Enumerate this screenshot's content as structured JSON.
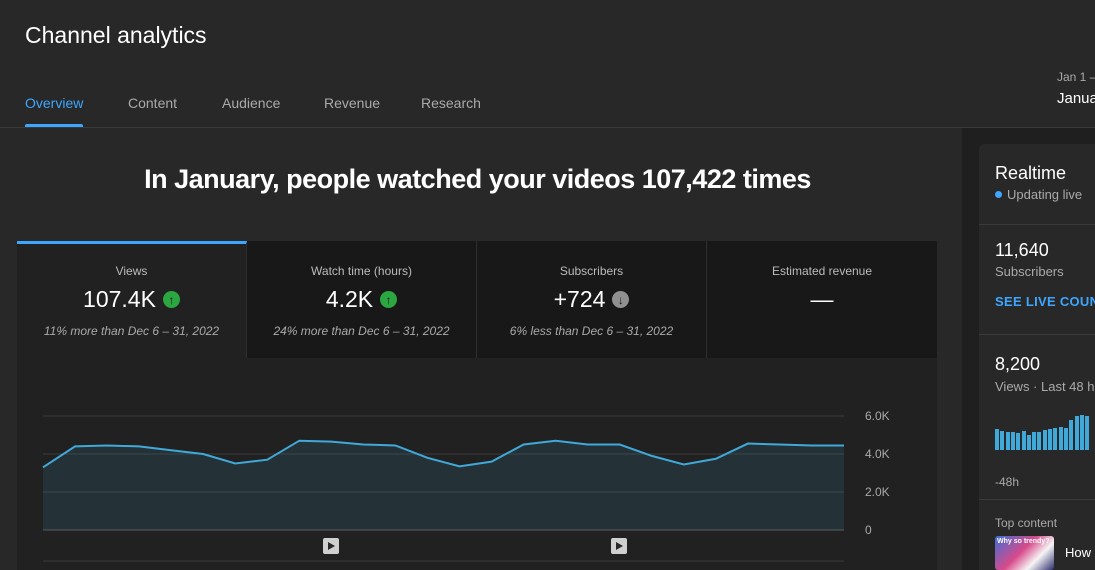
{
  "page": {
    "title": "Channel analytics"
  },
  "tabs": [
    {
      "label": "Overview",
      "active": true
    },
    {
      "label": "Content",
      "active": false
    },
    {
      "label": "Audience",
      "active": false
    },
    {
      "label": "Revenue",
      "active": false
    },
    {
      "label": "Research",
      "active": false
    }
  ],
  "date_range": {
    "short": "Jan 1 –",
    "label": "Janua"
  },
  "headline": "In January, people watched your videos 107,422 times",
  "metrics": [
    {
      "label": "Views",
      "value": "107.4K",
      "trend": "up",
      "comparison": "11% more than Dec 6 – 31, 2022"
    },
    {
      "label": "Watch time (hours)",
      "value": "4.2K",
      "trend": "up",
      "comparison": "24% more than Dec 6 – 31, 2022"
    },
    {
      "label": "Subscribers",
      "value": "+724",
      "trend": "down",
      "comparison": "6% less than Dec 6 – 31, 2022"
    },
    {
      "label": "Estimated revenue",
      "value": "—",
      "trend": "none",
      "comparison": ""
    }
  ],
  "chart_data": {
    "type": "area",
    "y_ticks": [
      "6.0K",
      "4.0K",
      "2.0K",
      "0"
    ],
    "ylim": [
      0,
      6000
    ],
    "values": [
      3300,
      4400,
      4450,
      4400,
      4200,
      4000,
      3500,
      3700,
      4700,
      4650,
      4500,
      4450,
      3800,
      3350,
      3600,
      4500,
      4700,
      4500,
      4500,
      3900,
      3450,
      3750,
      4550,
      4500,
      4450,
      4450
    ],
    "color": "#41a9d9",
    "markers": [
      "video-published",
      "video-published"
    ]
  },
  "realtime": {
    "title": "Realtime",
    "live_label": "Updating live",
    "subscribers_value": "11,640",
    "subscribers_label": "Subscribers",
    "live_count_link": "SEE LIVE COUN",
    "views_value": "8,200",
    "views_label": "Views · Last 48 h",
    "bar_values": [
      22,
      20,
      19,
      19,
      18,
      20,
      16,
      19,
      19,
      21,
      22,
      23,
      24,
      23,
      32,
      36,
      37,
      36
    ],
    "axis_start": "-48h",
    "top_content_label": "Top content",
    "top_video_title": "How",
    "thumb_text": "Why so trendy?"
  },
  "colors": {
    "accent": "#3ea6ff",
    "up": "#2ba640",
    "chart": "#41a9d9"
  }
}
